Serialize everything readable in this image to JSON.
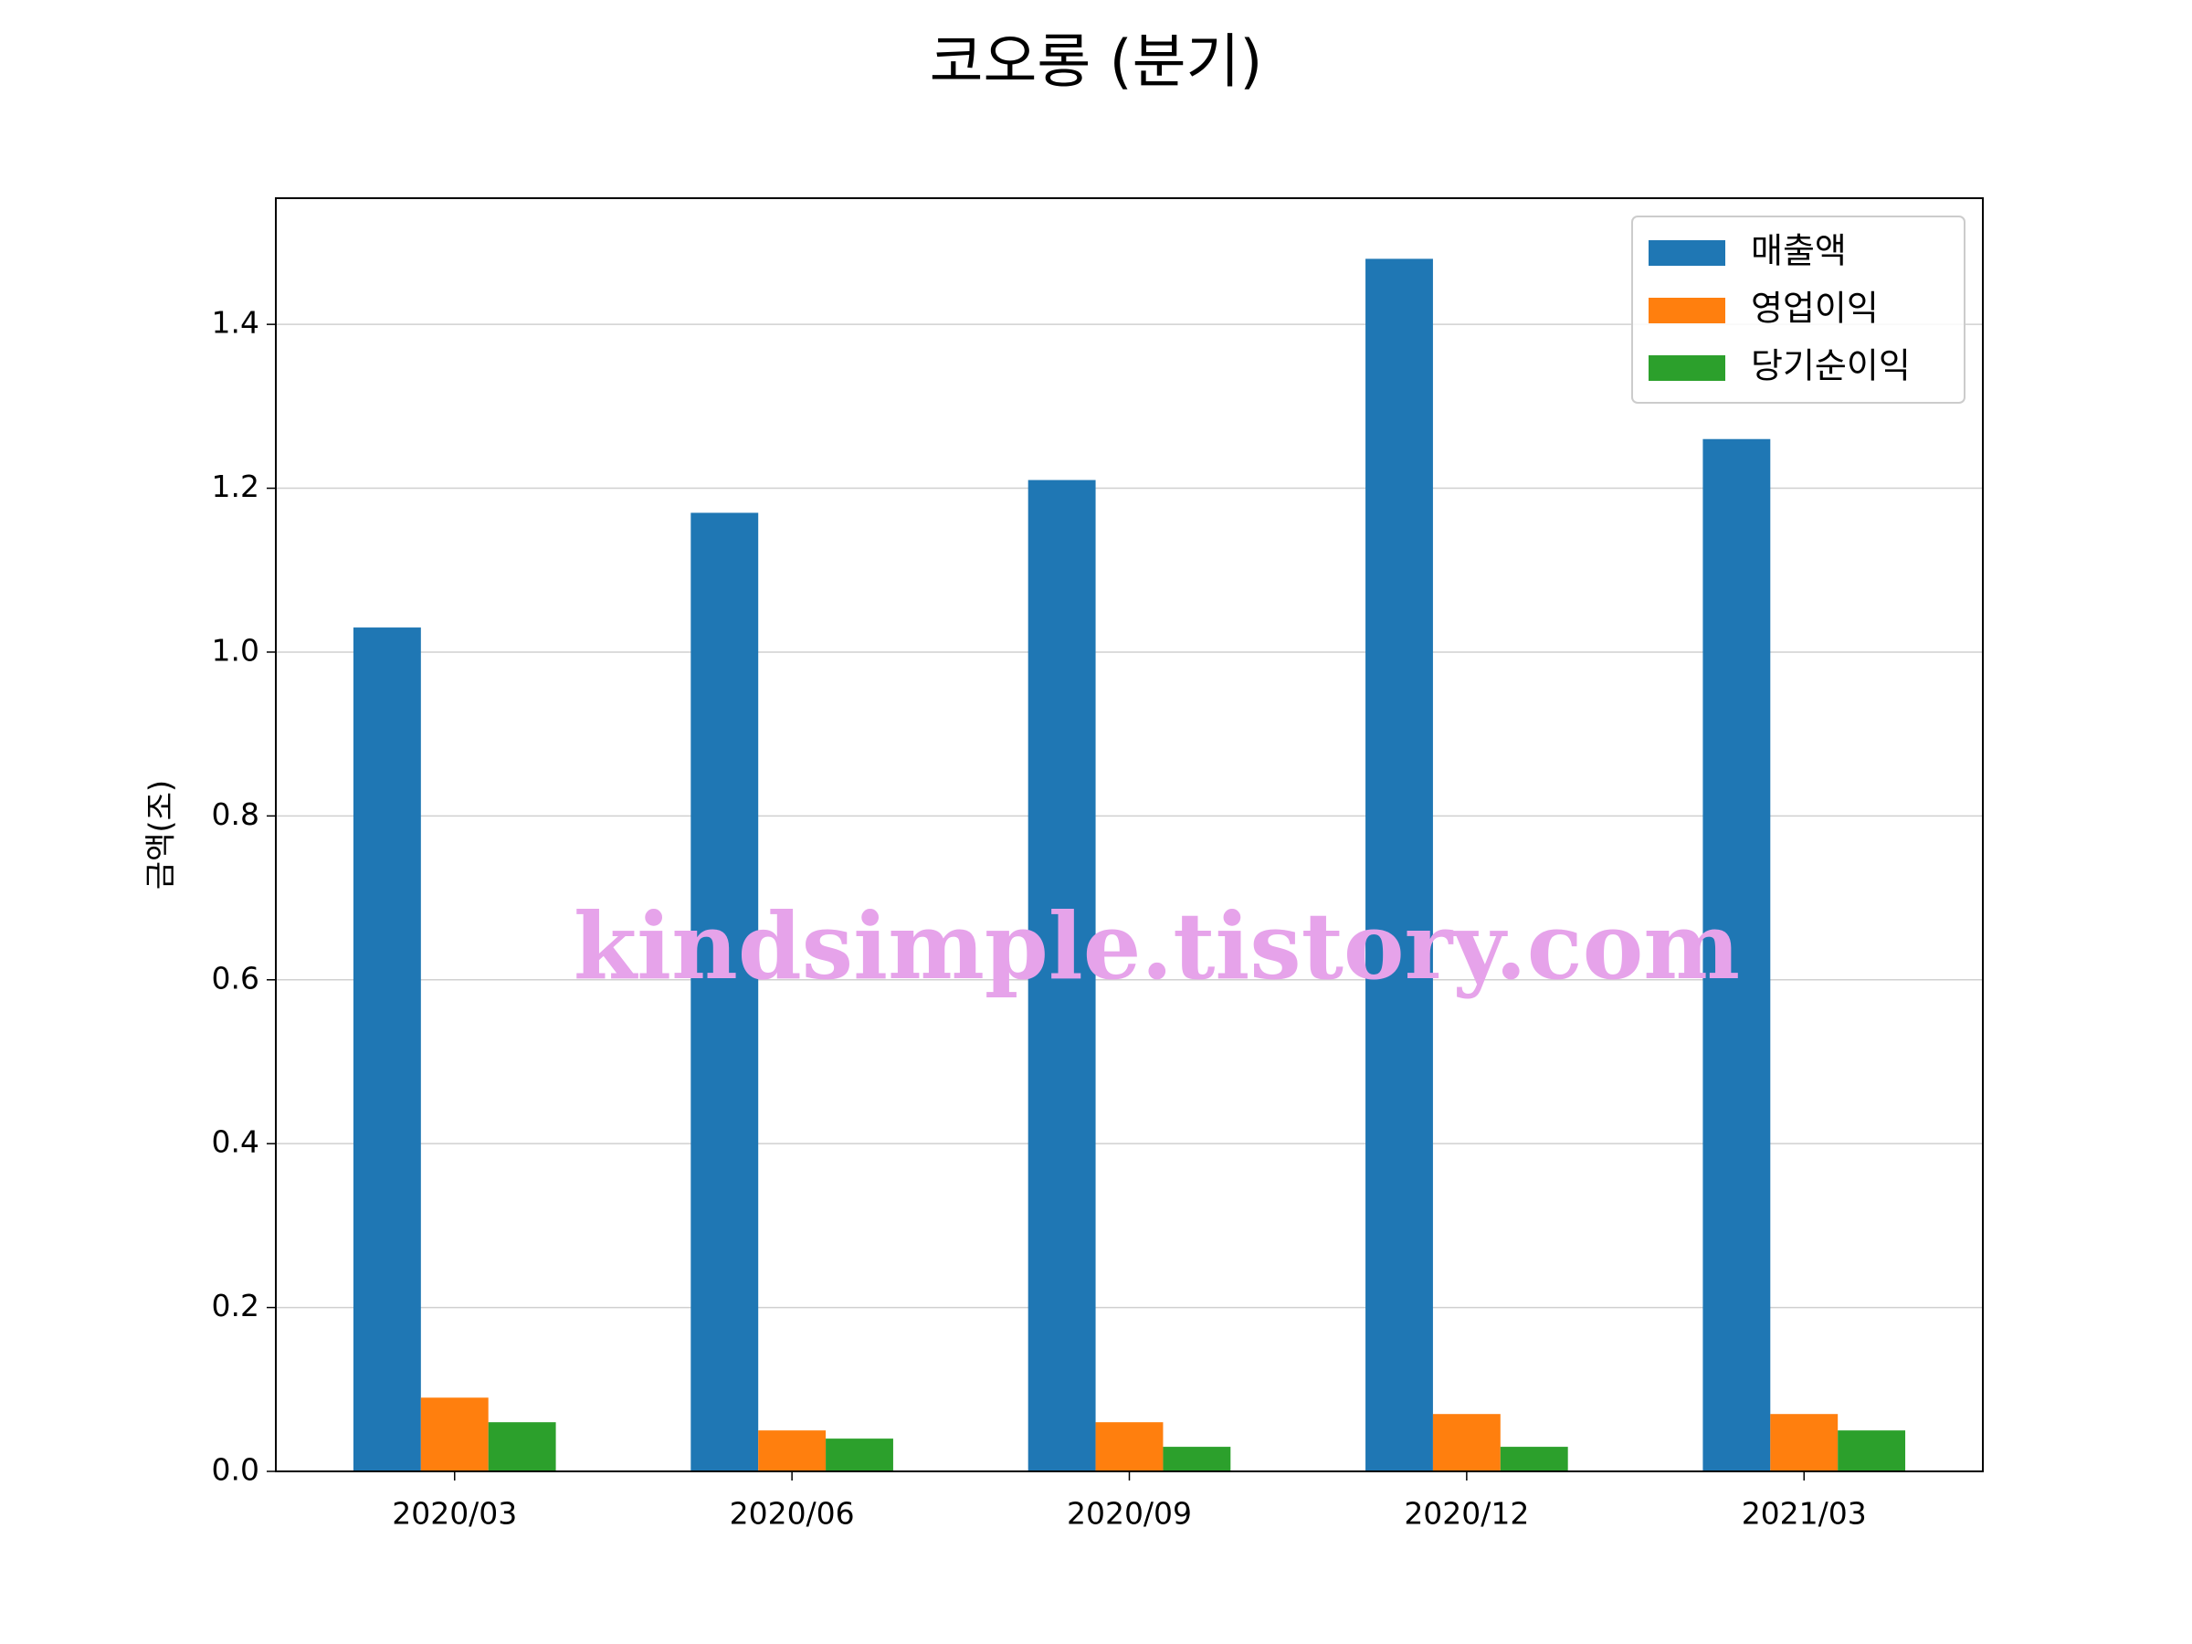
{
  "chart_data": {
    "type": "bar",
    "title": "코오롱 (분기)",
    "ylabel": "금액(조)",
    "watermark": "kindsimple.tistory.com",
    "categories": [
      "2020/03",
      "2020/06",
      "2020/09",
      "2020/12",
      "2021/03"
    ],
    "series": [
      {
        "name": "매출액",
        "color": "#1f77b4",
        "values": [
          1.03,
          1.17,
          1.21,
          1.48,
          1.26
        ]
      },
      {
        "name": "영업이익",
        "color": "#ff7f0e",
        "values": [
          0.09,
          0.05,
          0.06,
          0.07,
          0.07
        ]
      },
      {
        "name": "당기순이익",
        "color": "#2ca02c",
        "values": [
          0.06,
          0.04,
          0.03,
          0.03,
          0.05
        ]
      }
    ],
    "ylim": [
      0,
      1.554
    ],
    "yticks": [
      {
        "value": 0,
        "label": "0.0"
      },
      0.2,
      0.4,
      0.6,
      0.8,
      {
        "value": 1,
        "label": "1.0"
      },
      1.2,
      1.4
    ],
    "grid": true,
    "legend": "upper right"
  }
}
